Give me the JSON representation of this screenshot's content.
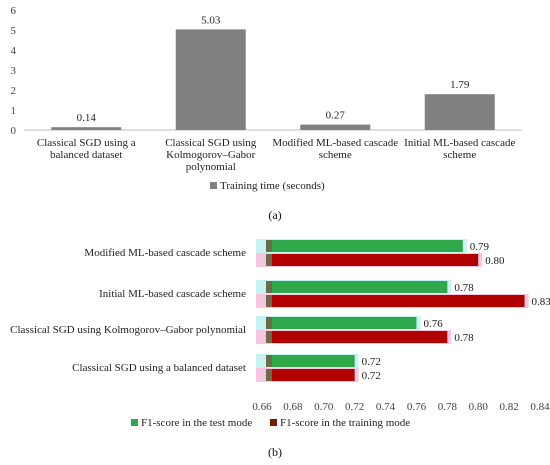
{
  "chart_data": [
    {
      "type": "bar",
      "panel_label": "(a)",
      "categories": [
        [
          "Classical SGD using a",
          "balanced dataset"
        ],
        [
          "Classical SGD using",
          "Kolmogorov–Gabor",
          "polynomial"
        ],
        [
          "Modified ML-based cascade",
          "scheme"
        ],
        [
          "Initial ML-based cascade",
          "scheme"
        ]
      ],
      "series": [
        {
          "name": "Training time (seconds)",
          "values": [
            0.14,
            5.03,
            0.27,
            1.79
          ],
          "labels": [
            "0.14",
            "5.03",
            "0.27",
            "1.79"
          ]
        }
      ],
      "ylim": [
        0,
        6
      ],
      "yticks": [
        0,
        1,
        2,
        3,
        4,
        5,
        6
      ],
      "legend": "bottom",
      "grid": false,
      "colors": {
        "bar": "#808080"
      }
    },
    {
      "type": "bar",
      "orientation": "horizontal",
      "panel_label": "(b)",
      "categories": [
        "Modified ML-based cascade scheme",
        "Initial ML-based cascade scheme",
        "Classical SGD using Kolmogorov–Gabor polynomial",
        "Classical SGD using a balanced dataset"
      ],
      "series": [
        {
          "name": "F1-score in the test mode",
          "values": [
            0.79,
            0.78,
            0.76,
            0.72
          ],
          "labels": [
            "0.79",
            "0.78",
            "0.76",
            "0.72"
          ]
        },
        {
          "name": "F1-score in the training mode",
          "values": [
            0.8,
            0.83,
            0.78,
            0.72
          ],
          "labels": [
            "0.80",
            "0.83",
            "0.78",
            "0.72"
          ]
        }
      ],
      "xlim": [
        0.66,
        0.84
      ],
      "xticks": [
        "0.66",
        "0.68",
        "0.70",
        "0.72",
        "0.74",
        "0.76",
        "0.78",
        "0.80",
        "0.82",
        "0.84"
      ],
      "legend": "bottom",
      "grid": false,
      "colors": {
        "test": "#2ea84a",
        "train": "#b00000",
        "test_glow": "#c6f2f4",
        "train_glow": "#f7c6e0",
        "bar_start": "#6b6b4a"
      }
    }
  ]
}
